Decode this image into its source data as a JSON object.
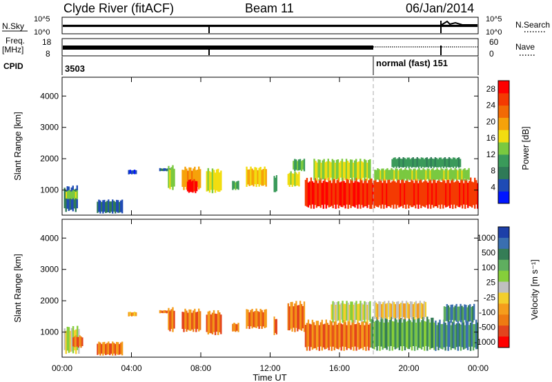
{
  "header": {
    "station": "Clyde River (fitACF)",
    "beam": "Beam 11",
    "date": "06/Jan/2014"
  },
  "status_panels": {
    "nsky_label": "N.Sky",
    "nsearch_label": "N.Search",
    "nsky_ticks": [
      "10^5",
      "10^0"
    ],
    "nsearch_ticks": [
      "10^5",
      "10^0"
    ],
    "freq_label_1": "Freq.",
    "freq_label_2": "[MHz]",
    "freq_ticks": [
      "18",
      "8"
    ],
    "nave_ticks": [
      "60",
      "0"
    ],
    "nave_label": "Nave",
    "cpid_label": "CPID",
    "cpid_first": "3503",
    "cpid_second": "normal (fast) 151"
  },
  "colors": {
    "power_scale": [
      "#0016ff",
      "#1f4bb5",
      "#2f7a57",
      "#3a9a5a",
      "#7ac940",
      "#f2dd10",
      "#f6a20a",
      "#f26a05",
      "#f43a02",
      "#ff0000"
    ],
    "velocity_scale": [
      "#1d3fa8",
      "#3a6fb0",
      "#357d56",
      "#5fae5f",
      "#86ce3a",
      "#c0c0c0",
      "#f3cf2c",
      "#f59d1c",
      "#ee7a12",
      "#e3441d",
      "#ff0000"
    ]
  },
  "chart_data": [
    {
      "type": "heatmap",
      "name": "power",
      "ylabel": "Slant Range [km]",
      "yticks": [
        "1000",
        "2000",
        "3000",
        "4000"
      ],
      "ylim": [
        200,
        4600
      ],
      "colorbar_label": "Power [dB]",
      "colorbar_ticks": [
        "4",
        "8",
        "12",
        "16",
        "20",
        "24",
        "28"
      ],
      "colorbar_range": [
        0,
        30
      ],
      "xticks": [
        "00:00",
        "04:00",
        "08:00",
        "12:00",
        "16:00",
        "20:00",
        "00:00"
      ],
      "xlim_hours": [
        0,
        24
      ],
      "marker_hour": 18,
      "blobs": [
        {
          "t": [
            0.1,
            0.9
          ],
          "r": [
            300,
            1150
          ],
          "v": 6
        },
        {
          "t": [
            0.2,
            0.9
          ],
          "r": [
            700,
            1000
          ],
          "v": 14
        },
        {
          "t": [
            2.0,
            3.5
          ],
          "r": [
            250,
            700
          ],
          "v": 6
        },
        {
          "t": [
            3.8,
            4.3
          ],
          "r": [
            1500,
            1650
          ],
          "v": 4
        },
        {
          "t": [
            5.6,
            6.3
          ],
          "r": [
            1600,
            1700
          ],
          "v": 6
        },
        {
          "t": [
            6.1,
            6.5
          ],
          "r": [
            1000,
            1800
          ],
          "v": 14
        },
        {
          "t": [
            6.9,
            8.0
          ],
          "r": [
            1000,
            1750
          ],
          "v": 20
        },
        {
          "t": [
            7.2,
            7.8
          ],
          "r": [
            900,
            1350
          ],
          "v": 28
        },
        {
          "t": [
            8.3,
            9.2
          ],
          "r": [
            900,
            1700
          ],
          "v": 16
        },
        {
          "t": [
            9.8,
            10.2
          ],
          "r": [
            1000,
            1300
          ],
          "v": 12
        },
        {
          "t": [
            10.6,
            11.8
          ],
          "r": [
            1100,
            1750
          ],
          "v": 18
        },
        {
          "t": [
            12.2,
            12.4
          ],
          "r": [
            900,
            1500
          ],
          "v": 10
        },
        {
          "t": [
            13.0,
            13.7
          ],
          "r": [
            1100,
            1600
          ],
          "v": 16
        },
        {
          "t": [
            13.3,
            14.0
          ],
          "r": [
            1600,
            2000
          ],
          "v": 12
        },
        {
          "t": [
            14.0,
            17.8
          ],
          "r": [
            400,
            1400
          ],
          "v": 27
        },
        {
          "t": [
            14.5,
            17.8
          ],
          "r": [
            1300,
            2000
          ],
          "v": 15
        },
        {
          "t": [
            17.8,
            24.0
          ],
          "r": [
            400,
            1400
          ],
          "v": 26
        },
        {
          "t": [
            18.0,
            23.5
          ],
          "r": [
            1300,
            1700
          ],
          "v": 14
        },
        {
          "t": [
            19.0,
            23.0
          ],
          "r": [
            1700,
            2050
          ],
          "v": 10
        }
      ]
    },
    {
      "type": "heatmap",
      "name": "velocity",
      "ylabel": "Slant Range [km]",
      "yticks": [
        "1000",
        "2000",
        "3000",
        "4000"
      ],
      "ylim": [
        200,
        4600
      ],
      "colorbar_label": "Velocity [m s⁻¹]",
      "colorbar_ticks": [
        "1000",
        "500",
        "100",
        "25",
        "-25",
        "-100",
        "-500",
        "-1000"
      ],
      "xlabel": "Time UT",
      "xticks": [
        "00:00",
        "04:00",
        "08:00",
        "12:00",
        "16:00",
        "20:00",
        "00:00"
      ],
      "xlim_hours": [
        0,
        24
      ],
      "marker_hour": 18,
      "blobs": [
        {
          "t": [
            0.1,
            1.0
          ],
          "r": [
            300,
            1200
          ],
          "v": 5
        },
        {
          "t": [
            0.6,
            1.2
          ],
          "r": [
            500,
            900
          ],
          "v": 8
        },
        {
          "t": [
            2.0,
            3.5
          ],
          "r": [
            250,
            700
          ],
          "v": 8
        },
        {
          "t": [
            3.8,
            4.3
          ],
          "r": [
            1500,
            1650
          ],
          "v": 7
        },
        {
          "t": [
            5.6,
            6.3
          ],
          "r": [
            1600,
            1700
          ],
          "v": 8
        },
        {
          "t": [
            6.1,
            6.5
          ],
          "r": [
            1000,
            1800
          ],
          "v": 8
        },
        {
          "t": [
            6.9,
            8.0
          ],
          "r": [
            1000,
            1750
          ],
          "v": 8
        },
        {
          "t": [
            8.3,
            9.2
          ],
          "r": [
            900,
            1700
          ],
          "v": 8
        },
        {
          "t": [
            9.8,
            10.2
          ],
          "r": [
            1000,
            1300
          ],
          "v": 8
        },
        {
          "t": [
            10.6,
            11.8
          ],
          "r": [
            1100,
            1750
          ],
          "v": 8
        },
        {
          "t": [
            12.2,
            12.4
          ],
          "r": [
            900,
            1500
          ],
          "v": 8
        },
        {
          "t": [
            13.0,
            14.0
          ],
          "r": [
            1000,
            2000
          ],
          "v": 8
        },
        {
          "t": [
            14.0,
            17.8
          ],
          "r": [
            400,
            1400
          ],
          "v": 8
        },
        {
          "t": [
            15.5,
            17.8
          ],
          "r": [
            1300,
            2000
          ],
          "v": 5
        },
        {
          "t": [
            17.8,
            21.5
          ],
          "r": [
            400,
            1500
          ],
          "v": 3
        },
        {
          "t": [
            18.0,
            21.0
          ],
          "r": [
            1400,
            2000
          ],
          "v": 6
        },
        {
          "t": [
            21.5,
            24.0
          ],
          "r": [
            400,
            1400
          ],
          "v": 2
        },
        {
          "t": [
            22.0,
            23.8
          ],
          "r": [
            1300,
            1900
          ],
          "v": 2
        }
      ]
    }
  ]
}
